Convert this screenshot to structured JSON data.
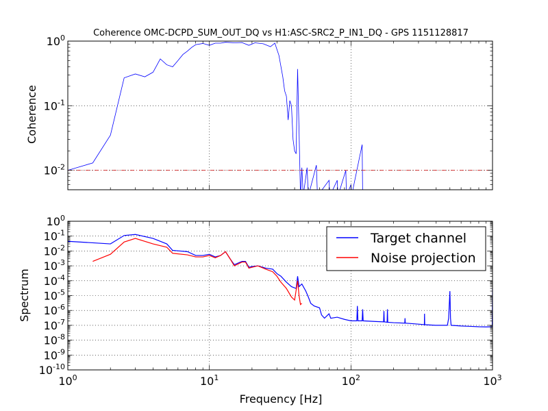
{
  "chart_data": [
    {
      "type": "line",
      "title": "Coherence OMC-DCPD_SUM_OUT_DQ vs H1:ASC-SRC2_P_IN1_DQ - GPS 1151128817",
      "xlabel": "",
      "ylabel": "Coherence",
      "xscale": "log",
      "yscale": "log",
      "xlim": [
        1,
        1000
      ],
      "ylim": [
        0.005,
        1
      ],
      "grid": true,
      "ytick_labels": [
        {
          "base": "10",
          "exp": "0"
        },
        {
          "base": "10",
          "exp": "-1"
        },
        {
          "base": "10",
          "exp": "-2"
        }
      ],
      "series": [
        {
          "color": "#0000ff",
          "points": [
            [
              1.0,
              0.01
            ],
            [
              1.5,
              0.013
            ],
            [
              2.0,
              0.035
            ],
            [
              2.5,
              0.27
            ],
            [
              3.0,
              0.31
            ],
            [
              3.5,
              0.28
            ],
            [
              4.0,
              0.33
            ],
            [
              4.5,
              0.53
            ],
            [
              5.0,
              0.43
            ],
            [
              5.5,
              0.4
            ],
            [
              6.0,
              0.5
            ],
            [
              6.5,
              0.62
            ],
            [
              7.0,
              0.7
            ],
            [
              7.5,
              0.8
            ],
            [
              8.0,
              0.88
            ],
            [
              9.0,
              0.92
            ],
            [
              10.0,
              0.86
            ],
            [
              11.0,
              0.93
            ],
            [
              12.0,
              0.93
            ],
            [
              13.0,
              0.96
            ],
            [
              15.0,
              0.94
            ],
            [
              17.0,
              0.95
            ],
            [
              19.0,
              0.86
            ],
            [
              21.0,
              0.94
            ],
            [
              24.0,
              0.91
            ],
            [
              27.0,
              0.82
            ],
            [
              29.0,
              0.93
            ],
            [
              31.0,
              0.6
            ],
            [
              33.0,
              0.28
            ],
            [
              34.0,
              0.17
            ],
            [
              35.0,
              0.14
            ],
            [
              36.0,
              0.06
            ],
            [
              37.0,
              0.12
            ],
            [
              38.0,
              0.1
            ],
            [
              39.0,
              0.03
            ],
            [
              40.0,
              0.02
            ],
            [
              41.0,
              0.018
            ],
            [
              42.0,
              0.37
            ],
            [
              43.0,
              0.04
            ],
            [
              44.0,
              0.004
            ],
            [
              45.0,
              0.011
            ],
            [
              46.0,
              0.004
            ],
            [
              49.0,
              0.011
            ],
            [
              50.0,
              0.004
            ],
            [
              57.0,
              0.012
            ],
            [
              58.0,
              0.004
            ],
            [
              70.0,
              0.007
            ],
            [
              71.0,
              0.004
            ],
            [
              80.0,
              0.007
            ],
            [
              81.0,
              0.004
            ],
            [
              92.0,
              0.01
            ],
            [
              93.0,
              0.004
            ],
            [
              100.0,
              0.006
            ],
            [
              101.0,
              0.004
            ],
            [
              120.0,
              0.025
            ],
            [
              121.0,
              0.004
            ]
          ]
        },
        {
          "color": "#cc0000",
          "style": "dash-dot",
          "points": [
            [
              1.0,
              0.01
            ],
            [
              1000.0,
              0.01
            ]
          ]
        }
      ]
    },
    {
      "type": "line",
      "title": "",
      "xlabel": "Frequency [Hz]",
      "ylabel": "Spectrum",
      "xscale": "log",
      "yscale": "log",
      "xlim": [
        1,
        1000
      ],
      "ylim": [
        1e-10,
        1
      ],
      "grid": true,
      "xtick_labels": [
        {
          "base": "10",
          "exp": "0"
        },
        {
          "base": "10",
          "exp": "1"
        },
        {
          "base": "10",
          "exp": "2"
        },
        {
          "base": "10",
          "exp": "3"
        }
      ],
      "ytick_labels": [
        {
          "base": "10",
          "exp": "0"
        },
        {
          "base": "10",
          "exp": "-1"
        },
        {
          "base": "10",
          "exp": "-2"
        },
        {
          "base": "10",
          "exp": "-3"
        },
        {
          "base": "10",
          "exp": "-4"
        },
        {
          "base": "10",
          "exp": "-5"
        },
        {
          "base": "10",
          "exp": "-6"
        },
        {
          "base": "10",
          "exp": "-7"
        },
        {
          "base": "10",
          "exp": "-8"
        },
        {
          "base": "10",
          "exp": "-9"
        },
        {
          "base": "10",
          "exp": "-10"
        }
      ],
      "legend_position": "top-right",
      "series": [
        {
          "name": "Target channel",
          "color": "#0000ff",
          "points": [
            [
              1.0,
              0.045
            ],
            [
              2.0,
              0.03
            ],
            [
              2.5,
              0.11
            ],
            [
              3.0,
              0.13
            ],
            [
              4.0,
              0.07
            ],
            [
              5.0,
              0.03
            ],
            [
              5.5,
              0.011
            ],
            [
              7.0,
              0.009
            ],
            [
              8.0,
              0.005
            ],
            [
              9.0,
              0.005
            ],
            [
              10.0,
              0.006
            ],
            [
              11.0,
              0.004
            ],
            [
              12.0,
              0.005
            ],
            [
              13.0,
              0.009
            ],
            [
              14.0,
              0.003
            ],
            [
              15.0,
              0.0012
            ],
            [
              17.0,
              0.002
            ],
            [
              18.0,
              0.002
            ],
            [
              19.0,
              0.0008
            ],
            [
              20.0,
              0.0009
            ],
            [
              22.0,
              0.001
            ],
            [
              25.0,
              0.0007
            ],
            [
              28.0,
              0.0006
            ],
            [
              30.0,
              0.0003
            ],
            [
              32.0,
              0.0002
            ],
            [
              35.0,
              8e-05
            ],
            [
              38.0,
              4e-05
            ],
            [
              41.0,
              3e-05
            ],
            [
              42.0,
              0.0002
            ],
            [
              43.0,
              4e-05
            ],
            [
              45.0,
              6e-05
            ],
            [
              48.0,
              2e-05
            ],
            [
              50.0,
              8e-06
            ],
            [
              52.0,
              3e-06
            ],
            [
              55.0,
              2e-06
            ],
            [
              60.0,
              1.5e-06
            ],
            [
              62.0,
              5e-07
            ],
            [
              65.0,
              3e-07
            ],
            [
              70.0,
              6e-07
            ],
            [
              72.0,
              3e-07
            ],
            [
              80.0,
              3.5e-07
            ],
            [
              90.0,
              2.5e-07
            ],
            [
              100.0,
              2e-07
            ],
            [
              110.0,
              2e-07
            ],
            [
              111.0,
              2e-06
            ],
            [
              112.0,
              2e-07
            ],
            [
              120.0,
              2e-07
            ],
            [
              121.0,
              1.2e-06
            ],
            [
              122.0,
              2e-07
            ],
            [
              150.0,
              1.8e-07
            ],
            [
              170.0,
              1.7e-07
            ],
            [
              171.0,
              9e-07
            ],
            [
              172.0,
              1.7e-07
            ],
            [
              180.0,
              1.6e-07
            ],
            [
              181.0,
              1.2e-06
            ],
            [
              182.0,
              1.6e-07
            ],
            [
              200.0,
              1.5e-07
            ],
            [
              240.0,
              1.4e-07
            ],
            [
              241.0,
              3e-07
            ],
            [
              242.0,
              1.4e-07
            ],
            [
              300.0,
              1.2e-07
            ],
            [
              330.0,
              1.1e-07
            ],
            [
              331.0,
              6e-07
            ],
            [
              332.0,
              1.1e-07
            ],
            [
              400.0,
              1e-07
            ],
            [
              480.0,
              1e-07
            ],
            [
              490.0,
              3e-07
            ],
            [
              500.0,
              2e-05
            ],
            [
              505.0,
              3e-07
            ],
            [
              510.0,
              1e-07
            ],
            [
              600.0,
              9e-08
            ],
            [
              700.0,
              8.5e-08
            ],
            [
              800.0,
              8e-08
            ],
            [
              900.0,
              7.8e-08
            ],
            [
              995.0,
              8e-08
            ],
            [
              1000.0,
              3e-05
            ]
          ]
        },
        {
          "name": "Noise projection",
          "color": "#ff0000",
          "points": [
            [
              1.5,
              0.002
            ],
            [
              2.0,
              0.006
            ],
            [
              2.5,
              0.04
            ],
            [
              3.0,
              0.07
            ],
            [
              4.0,
              0.03
            ],
            [
              5.0,
              0.018
            ],
            [
              5.5,
              0.007
            ],
            [
              7.0,
              0.0055
            ],
            [
              8.0,
              0.004
            ],
            [
              9.0,
              0.004
            ],
            [
              10.0,
              0.005
            ],
            [
              11.0,
              0.0035
            ],
            [
              12.0,
              0.005
            ],
            [
              13.0,
              0.009
            ],
            [
              14.0,
              0.003
            ],
            [
              15.0,
              0.001
            ],
            [
              17.0,
              0.0018
            ],
            [
              18.0,
              0.0018
            ],
            [
              19.0,
              0.0007
            ],
            [
              20.0,
              0.0008
            ],
            [
              22.0,
              0.001
            ],
            [
              25.0,
              0.0006
            ],
            [
              28.0,
              0.0004
            ],
            [
              30.0,
              0.0002
            ],
            [
              32.0,
              8e-05
            ],
            [
              35.0,
              3e-05
            ],
            [
              38.0,
              8e-06
            ],
            [
              40.0,
              5e-06
            ],
            [
              42.0,
              0.0001
            ],
            [
              43.0,
              1e-05
            ],
            [
              44.0,
              2.5e-06
            ],
            [
              45.0,
              3e-06
            ]
          ]
        }
      ]
    }
  ]
}
